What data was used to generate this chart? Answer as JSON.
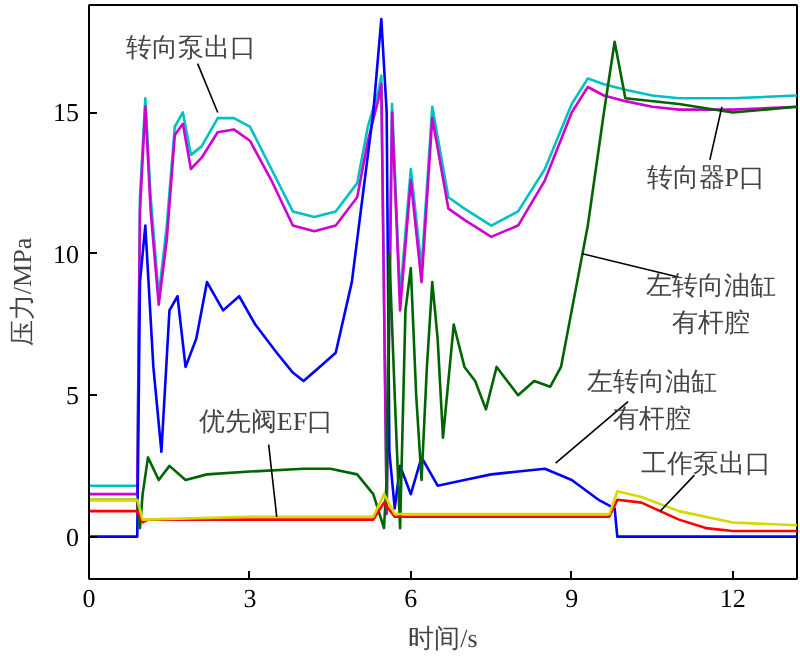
{
  "chart_data": {
    "type": "line",
    "xlabel": "时间/s",
    "ylabel": "压力/MPa",
    "xlim": [
      0,
      13.2
    ],
    "ylim": [
      -1.5,
      18.8
    ],
    "xticks": [
      0,
      3,
      6,
      9,
      12
    ],
    "yticks": [
      0,
      5,
      10,
      15
    ],
    "grid": false,
    "marker": "none",
    "line_style": "solid",
    "series": [
      {
        "color": "#00c0c0",
        "x": [
          0,
          0.9,
          0.95,
          1.05,
          1.15,
          1.3,
          1.45,
          1.6,
          1.75,
          1.9,
          2.1,
          2.4,
          2.7,
          3.0,
          3.4,
          3.8,
          4.2,
          4.6,
          5.0,
          5.2,
          5.4,
          5.45,
          5.55,
          5.65,
          5.8,
          6.0,
          6.2,
          6.4,
          6.7,
          7.0,
          7.5,
          8.0,
          8.5,
          9.0,
          9.3,
          9.6,
          10.0,
          10.5,
          11.0,
          12.0,
          13.2
        ],
        "values": [
          1.8,
          1.8,
          12,
          15.5,
          12,
          8.5,
          11,
          14.5,
          15,
          13.5,
          13.8,
          14.8,
          14.8,
          14.5,
          13,
          11.5,
          11.3,
          11.5,
          12.5,
          14.5,
          15.8,
          16.3,
          1,
          15.3,
          8.5,
          13,
          9.5,
          15.2,
          12,
          11.6,
          11,
          11.5,
          13,
          15.3,
          16.2,
          16,
          15.8,
          15.6,
          15.5,
          15.5,
          15.6
        ]
      },
      {
        "color": "#d000d0",
        "x": [
          0,
          0.9,
          0.95,
          1.05,
          1.15,
          1.3,
          1.45,
          1.6,
          1.75,
          1.9,
          2.1,
          2.4,
          2.7,
          3.0,
          3.4,
          3.8,
          4.2,
          4.6,
          5.0,
          5.2,
          5.4,
          5.45,
          5.55,
          5.65,
          5.8,
          6.0,
          6.2,
          6.4,
          6.7,
          7.0,
          7.5,
          8.0,
          8.5,
          9.0,
          9.3,
          9.6,
          10.0,
          10.5,
          11.0,
          12.0,
          13.2
        ],
        "values": [
          1.5,
          1.5,
          11.5,
          15.2,
          11.5,
          8.2,
          10.5,
          14.2,
          14.6,
          13,
          13.4,
          14.3,
          14.4,
          14,
          12.6,
          11,
          10.8,
          11,
          12,
          14,
          15.5,
          16,
          0.8,
          15,
          8,
          12.6,
          9,
          14.8,
          11.6,
          11.2,
          10.6,
          11,
          12.6,
          15,
          15.9,
          15.6,
          15.4,
          15.2,
          15.1,
          15.1,
          15.2
        ]
      },
      {
        "color": "#0000ff",
        "x": [
          0,
          0.9,
          0.95,
          1.05,
          1.2,
          1.35,
          1.5,
          1.65,
          1.8,
          2.0,
          2.2,
          2.5,
          2.8,
          3.1,
          3.5,
          3.8,
          4.0,
          4.3,
          4.6,
          4.9,
          5.1,
          5.3,
          5.45,
          5.55,
          5.6,
          5.7,
          5.8,
          6.0,
          6.2,
          6.5,
          7.0,
          7.5,
          8.0,
          8.5,
          9.0,
          9.5,
          9.8,
          9.85,
          13.2
        ],
        "values": [
          0,
          0,
          9,
          11,
          6,
          3,
          8,
          8.5,
          6,
          7,
          9,
          8,
          8.5,
          7.5,
          6.5,
          5.8,
          5.5,
          6,
          6.5,
          9,
          12,
          15,
          18.3,
          15,
          3,
          1,
          2.5,
          1.5,
          2.8,
          1.8,
          2,
          2.2,
          2.3,
          2.4,
          2,
          1.3,
          1,
          0,
          0
        ]
      },
      {
        "color": "#006400",
        "x": [
          0,
          0.9,
          0.95,
          1.0,
          1.1,
          1.3,
          1.5,
          1.8,
          2.2,
          3.0,
          4.0,
          4.5,
          5.0,
          5.3,
          5.5,
          5.55,
          5.6,
          5.7,
          5.8,
          5.9,
          6.0,
          6.1,
          6.2,
          6.3,
          6.4,
          6.5,
          6.6,
          6.8,
          7.0,
          7.2,
          7.4,
          7.6,
          8.0,
          8.3,
          8.6,
          8.8,
          9.0,
          9.3,
          9.6,
          9.8,
          9.9,
          10.0,
          11.0,
          12.0,
          13.2
        ],
        "values": [
          1.3,
          1.3,
          0.3,
          1.5,
          2.8,
          2,
          2.5,
          2,
          2.2,
          2.3,
          2.4,
          2.4,
          2.2,
          1.5,
          0.3,
          2,
          10,
          5,
          0.3,
          8,
          9.5,
          5,
          2,
          6,
          9,
          7,
          3.5,
          7.5,
          6,
          5.5,
          4.5,
          6,
          5,
          5.5,
          5.3,
          6,
          8,
          11,
          15,
          17.5,
          16.5,
          15.5,
          15.3,
          15,
          15.2
        ]
      },
      {
        "color": "#ff0000",
        "x": [
          0,
          0.9,
          1.0,
          1.1,
          3.0,
          5.3,
          5.5,
          5.7,
          7.5,
          9.7,
          9.85,
          10.3,
          11.0,
          11.5,
          12.0,
          13.2
        ],
        "values": [
          0.9,
          0.9,
          0.5,
          0.6,
          0.6,
          0.6,
          1.2,
          0.7,
          0.7,
          0.7,
          1.3,
          1.2,
          0.6,
          0.3,
          0.2,
          0.2
        ]
      },
      {
        "color": "#d8d800",
        "x": [
          0,
          0.9,
          1.0,
          3.0,
          5.3,
          5.5,
          5.7,
          7.5,
          9.7,
          9.85,
          10.3,
          11.0,
          12.0,
          13.2
        ],
        "values": [
          1.3,
          1.3,
          0.6,
          0.7,
          0.7,
          1.5,
          0.8,
          0.8,
          0.8,
          1.6,
          1.4,
          0.9,
          0.5,
          0.4
        ]
      }
    ],
    "annotations": [
      {
        "text": "转向泵出口",
        "x": 2.4,
        "y": 15.0
      },
      {
        "text": "转向器P口",
        "x": 11.8,
        "y": 15.2
      },
      {
        "text": "左转向油缸有杆腔",
        "x": 9.2,
        "y": 10
      },
      {
        "text": "左转向油缸有杆腔",
        "x": 8.7,
        "y": 2.6
      },
      {
        "text": "优先阀EF口",
        "x": 3.5,
        "y": 0.7
      },
      {
        "text": "工作泵出口",
        "x": 10.65,
        "y": 0.9
      }
    ]
  }
}
